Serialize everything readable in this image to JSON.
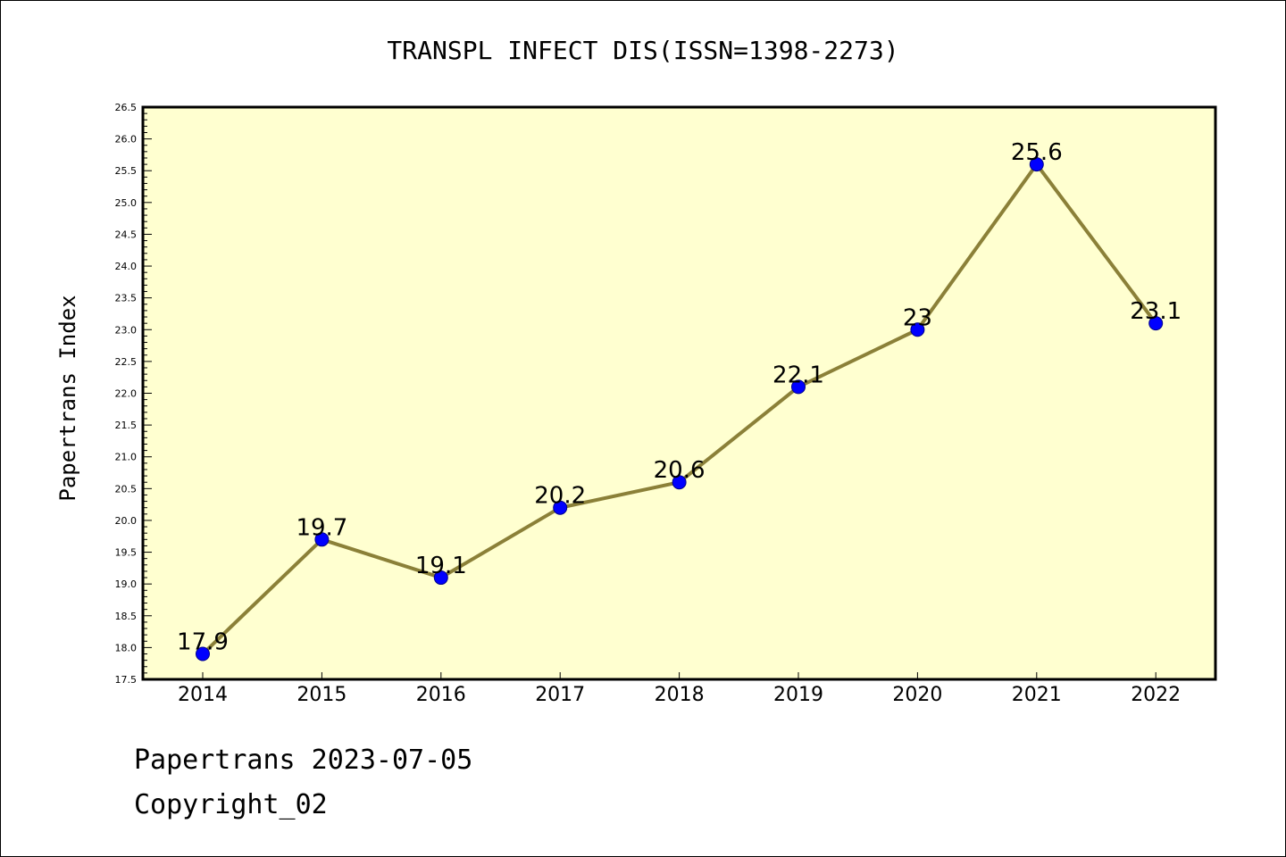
{
  "chart_data": {
    "type": "line",
    "title": "TRANSPL INFECT DIS(ISSN=1398-2273)",
    "xlabel": "",
    "ylabel": "Papertrans Index",
    "categories": [
      "2014",
      "2015",
      "2016",
      "2017",
      "2018",
      "2019",
      "2020",
      "2021",
      "2022"
    ],
    "series": [
      {
        "values": [
          17.9,
          19.7,
          19.1,
          20.2,
          20.6,
          22.1,
          23,
          25.6,
          23.1
        ]
      }
    ],
    "data_labels": [
      "17.9",
      "19.7",
      "19.1",
      "20.2",
      "20.6",
      "22.1",
      "23",
      "25.6",
      "23.1"
    ],
    "ylim": [
      17.5,
      26.5
    ],
    "yticks": [
      "17.5",
      "18.0",
      "18.5",
      "19.0",
      "19.5",
      "20.0",
      "20.5",
      "21.0",
      "21.5",
      "22.0",
      "22.5",
      "23.0",
      "23.5",
      "24.0",
      "24.5",
      "25.0",
      "25.5",
      "26.0",
      "26.5"
    ],
    "grid": false,
    "colors": {
      "plot_background": "#ffffd0",
      "line": "#8b8038",
      "marker": "#0000ff"
    }
  },
  "footer": {
    "date_line": "Papertrans 2023-07-05",
    "copyright": "Copyright_02"
  }
}
